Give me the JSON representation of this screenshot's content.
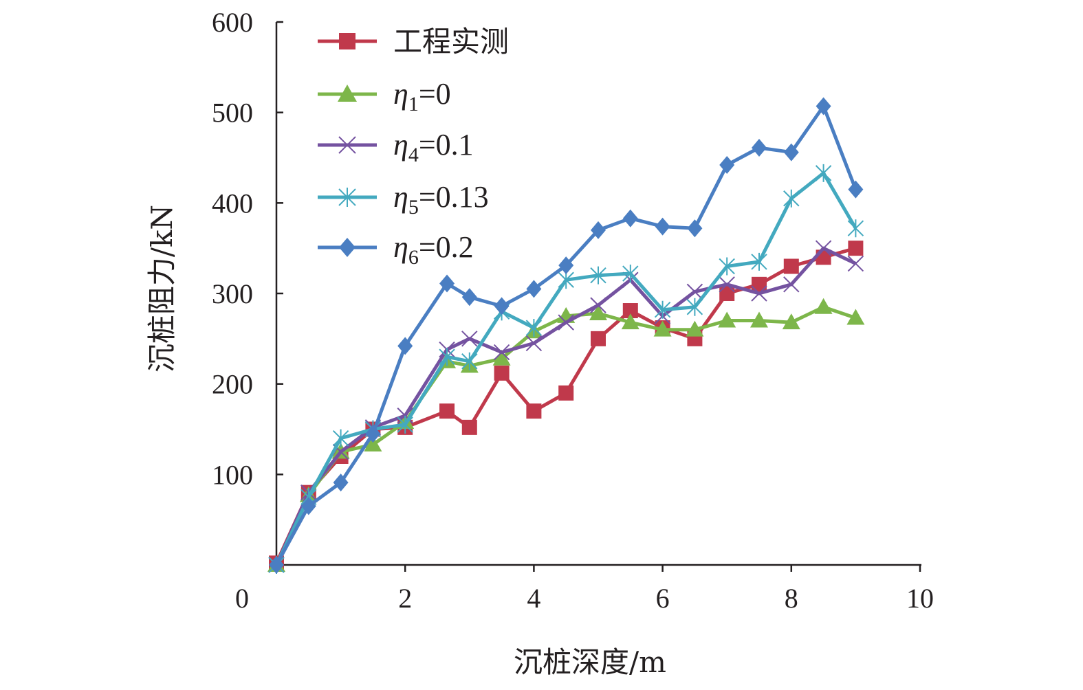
{
  "chart_data": {
    "type": "line",
    "title": "",
    "xlabel": "沉桩深度/m",
    "ylabel": "沉桩阻力/kN",
    "xlim": [
      0,
      10
    ],
    "ylim": [
      0,
      600
    ],
    "xticks": [
      "0",
      "2",
      "4",
      "6",
      "8",
      "10"
    ],
    "yticks": [
      "100",
      "200",
      "300",
      "400",
      "500",
      "600"
    ],
    "legend_position": "top-left",
    "series": [
      {
        "name": "工程实测",
        "legend": {
          "text": "工程实测"
        },
        "color": "#c0394b",
        "marker": "square",
        "x": [
          0,
          0.5,
          1,
          1.5,
          2,
          2.65,
          3,
          3.5,
          4,
          4.5,
          5,
          5.5,
          6,
          6.5,
          7,
          7.5,
          8,
          8.5,
          9
        ],
        "values": [
          2,
          80,
          120,
          150,
          152,
          170,
          152,
          212,
          170,
          190,
          250,
          281,
          262,
          250,
          300,
          310,
          330,
          340,
          350
        ]
      },
      {
        "name": "η1=0",
        "legend": {
          "symbol": "η",
          "sub": "1",
          "rest": "=0"
        },
        "color": "#7db64a",
        "marker": "triangle",
        "x": [
          0,
          0.5,
          1,
          1.5,
          2,
          2.65,
          3,
          3.5,
          4,
          4.5,
          5,
          5.5,
          6,
          6.5,
          7,
          7.5,
          8,
          8.5,
          9
        ],
        "values": [
          0,
          77,
          125,
          133,
          158,
          225,
          220,
          228,
          258,
          275,
          278,
          268,
          260,
          260,
          270,
          270,
          268,
          285,
          273
        ]
      },
      {
        "name": "η4=0.1",
        "legend": {
          "symbol": "η",
          "sub": "4",
          "rest": "=0.1"
        },
        "color": "#7452a0",
        "marker": "x",
        "x": [
          0,
          0.5,
          1,
          1.5,
          2,
          2.65,
          3,
          3.5,
          4,
          4.5,
          5,
          5.5,
          6,
          6.5,
          7,
          7.5,
          8,
          8.5,
          9
        ],
        "values": [
          0,
          80,
          125,
          152,
          165,
          238,
          250,
          235,
          245,
          268,
          287,
          315,
          275,
          302,
          310,
          300,
          310,
          350,
          333
        ]
      },
      {
        "name": "η5=0.13",
        "legend": {
          "symbol": "η",
          "sub": "5",
          "rest": "=0.13"
        },
        "color": "#43a9bf",
        "marker": "asterisk",
        "x": [
          0,
          0.5,
          1,
          1.5,
          2,
          2.65,
          3,
          3.5,
          4,
          4.5,
          5,
          5.5,
          6,
          6.5,
          7,
          7.5,
          8,
          8.5,
          9
        ],
        "values": [
          0,
          75,
          140,
          150,
          155,
          230,
          225,
          280,
          262,
          315,
          320,
          322,
          282,
          285,
          330,
          335,
          405,
          433,
          372
        ]
      },
      {
        "name": "η6=0.2",
        "legend": {
          "symbol": "η",
          "sub": "6",
          "rest": "=0.2"
        },
        "color": "#4a7ec2",
        "marker": "diamond",
        "x": [
          0,
          0.5,
          1,
          1.5,
          2,
          2.65,
          3,
          3.5,
          4,
          4.5,
          5,
          5.5,
          6,
          6.5,
          7,
          7.5,
          8,
          8.5,
          9
        ],
        "values": [
          0,
          65,
          91,
          145,
          242,
          311,
          296,
          286,
          305,
          331,
          370,
          383,
          374,
          372,
          442,
          461,
          456,
          507,
          415
        ]
      }
    ]
  }
}
